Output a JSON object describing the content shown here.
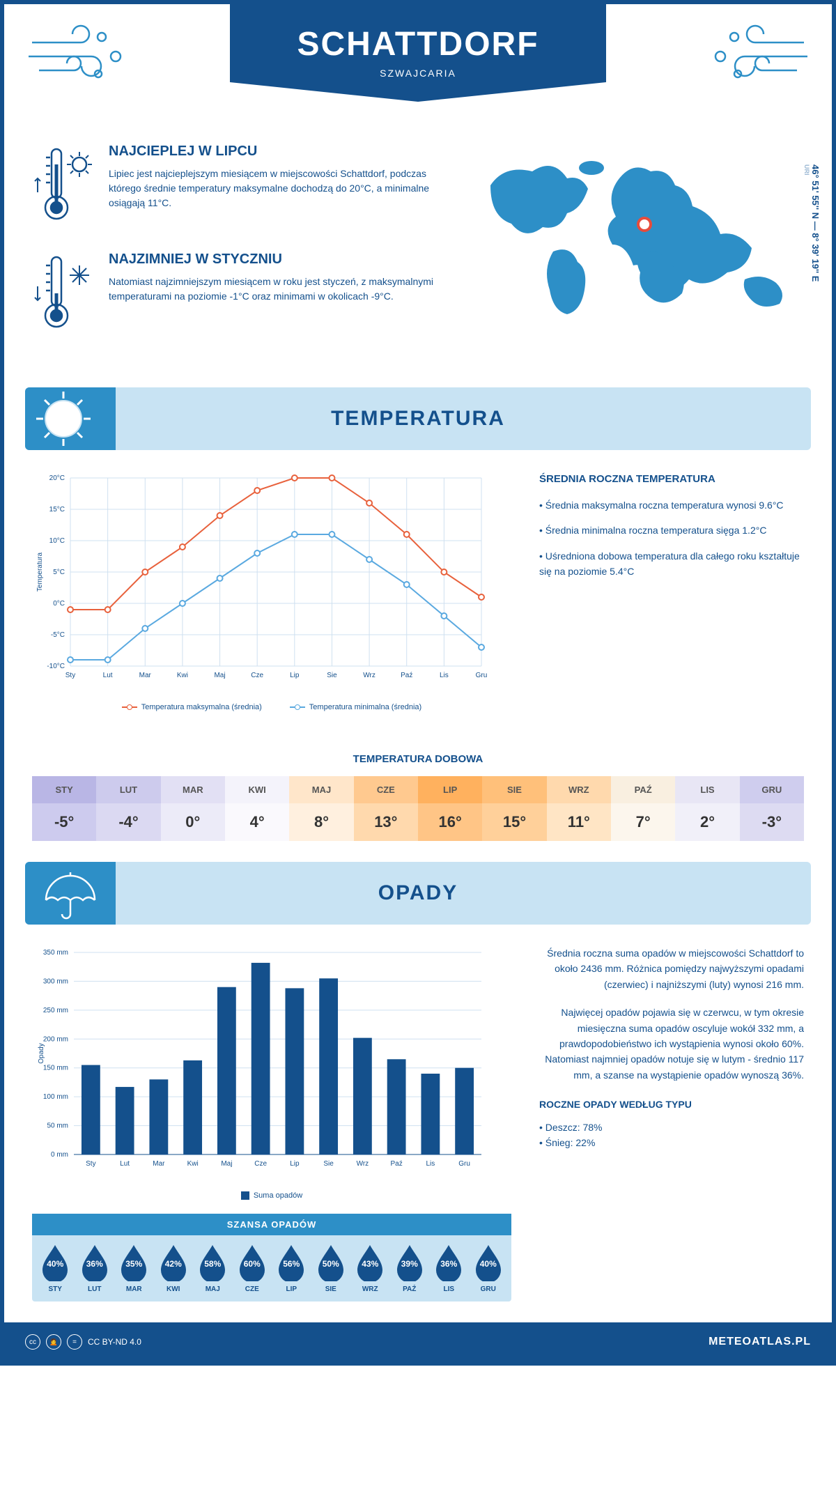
{
  "header": {
    "city": "SCHATTDORF",
    "country": "SZWAJCARIA"
  },
  "coords": {
    "text": "46° 51' 55'' N — 8° 39' 19'' E",
    "region": "URI"
  },
  "map": {
    "marker_left_pct": 50,
    "marker_top_pct": 34
  },
  "facts": {
    "hot": {
      "title": "NAJCIEPLEJ W LIPCU",
      "text": "Lipiec jest najcieplejszym miesiącem w miejscowości Schattdorf, podczas którego średnie temperatury maksymalne dochodzą do 20°C, a minimalne osiągają 11°C."
    },
    "cold": {
      "title": "NAJZIMNIEJ W STYCZNIU",
      "text": "Natomiast najzimniejszym miesiącem w roku jest styczeń, z maksymalnymi temperaturami na poziomie -1°C oraz minimami w okolicach -9°C."
    }
  },
  "sections": {
    "temp": "TEMPERATURA",
    "precip": "OPADY"
  },
  "months_short": [
    "Sty",
    "Lut",
    "Mar",
    "Kwi",
    "Maj",
    "Cze",
    "Lip",
    "Sie",
    "Wrz",
    "Paź",
    "Lis",
    "Gru"
  ],
  "months_upper": [
    "STY",
    "LUT",
    "MAR",
    "KWI",
    "MAJ",
    "CZE",
    "LIP",
    "SIE",
    "WRZ",
    "PAŹ",
    "LIS",
    "GRU"
  ],
  "temp_chart": {
    "type": "line",
    "ylabel": "Temperatura",
    "ylim": [
      -10,
      20
    ],
    "ytick_step": 5,
    "ytick_suffix": "°C",
    "grid_color": "#cfe0f0",
    "background_color": "#ffffff",
    "series": [
      {
        "name": "Temperatura maksymalna (średnia)",
        "color": "#e8613c",
        "values": [
          -1,
          -1,
          5,
          9,
          14,
          18,
          20,
          20,
          16,
          11,
          5,
          1
        ]
      },
      {
        "name": "Temperatura minimalna (średnia)",
        "color": "#5aa9e0",
        "values": [
          -9,
          -9,
          -4,
          0,
          4,
          8,
          11,
          11,
          7,
          3,
          -2,
          -7
        ]
      }
    ],
    "label_fontsize": 10
  },
  "temp_side": {
    "title": "ŚREDNIA ROCZNA TEMPERATURA",
    "bullets": [
      "Średnia maksymalna roczna temperatura wynosi 9.6°C",
      "Średnia minimalna roczna temperatura sięga 1.2°C",
      "Uśredniona dobowa temperatura dla całego roku kształtuje się na poziomie 5.4°C"
    ]
  },
  "daily": {
    "title": "TEMPERATURA DOBOWA",
    "values": [
      -5,
      -4,
      0,
      4,
      8,
      13,
      16,
      15,
      11,
      7,
      2,
      -3
    ],
    "header_colors": [
      "#b9b6e5",
      "#cdcbed",
      "#e2e0f4",
      "#f4f3fb",
      "#ffe6ca",
      "#ffc98f",
      "#ffb15e",
      "#ffc07a",
      "#ffd9ad",
      "#f9efe0",
      "#e8e6f5",
      "#cfcdee"
    ],
    "value_colors": [
      "#cdcbee",
      "#dbd9f2",
      "#ecebf8",
      "#faf9fd",
      "#fff0df",
      "#ffd9ad",
      "#ffc586",
      "#ffd09a",
      "#ffe5c5",
      "#fcf6ed",
      "#f1f0f9",
      "#dddbf2"
    ]
  },
  "precip_chart": {
    "type": "bar",
    "ylabel": "Opady",
    "ylim": [
      0,
      350
    ],
    "ytick_step": 50,
    "ytick_suffix": " mm",
    "grid_color": "#cfe0f0",
    "bar_color": "#14508c",
    "bar_width": 0.55,
    "values": [
      155,
      117,
      130,
      163,
      290,
      332,
      288,
      305,
      202,
      165,
      140,
      150
    ],
    "legend": "Suma opadów"
  },
  "precip_side": {
    "p1": "Średnia roczna suma opadów w miejscowości Schattdorf to około 2436 mm. Różnica pomiędzy najwyższymi opadami (czerwiec) i najniższymi (luty) wynosi 216 mm.",
    "p2": "Najwięcej opadów pojawia się w czerwcu, w tym okresie miesięczna suma opadów oscyluje wokół 332 mm, a prawdopodobieństwo ich wystąpienia wynosi około 60%. Natomiast najmniej opadów notuje się w lutym - średnio 117 mm, a szanse na wystąpienie opadów wynoszą 36%.",
    "bytype_title": "ROCZNE OPADY WEDŁUG TYPU",
    "bytype": [
      "Deszcz: 78%",
      "Śnieg: 22%"
    ]
  },
  "chance": {
    "title": "SZANSA OPADÓW",
    "values": [
      40,
      36,
      35,
      42,
      58,
      60,
      56,
      50,
      43,
      39,
      36,
      40
    ],
    "drop_color": "#14508c"
  },
  "footer": {
    "license": "CC BY-ND 4.0",
    "brand": "METEOATLAS.PL"
  },
  "colors": {
    "primary": "#14508c",
    "banner_bg": "#c8e3f3",
    "banner_accent": "#2d8fc7"
  }
}
